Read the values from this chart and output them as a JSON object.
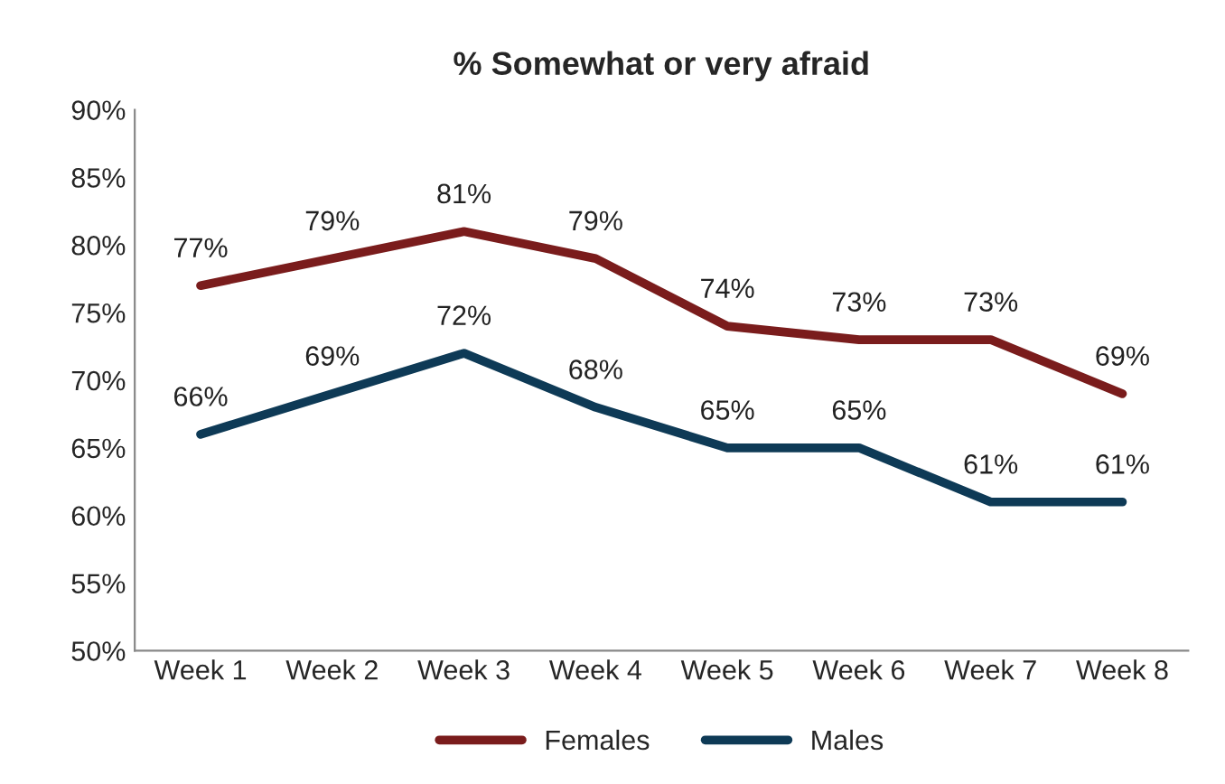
{
  "chart_data": {
    "type": "line",
    "title": "% Somewhat or very afraid",
    "categories": [
      "Week 1",
      "Week 2",
      "Week 3",
      "Week 4",
      "Week 5",
      "Week 6",
      "Week 7",
      "Week 8"
    ],
    "series": [
      {
        "name": "Females",
        "color": "#7a1c1c",
        "values": [
          77,
          79,
          81,
          79,
          74,
          73,
          73,
          69
        ],
        "value_labels": [
          "77%",
          "79%",
          "81%",
          "79%",
          "74%",
          "73%",
          "73%",
          "69%"
        ]
      },
      {
        "name": "Males",
        "color": "#0e3a56",
        "values": [
          66,
          69,
          72,
          68,
          65,
          65,
          61,
          61
        ],
        "value_labels": [
          "66%",
          "69%",
          "72%",
          "68%",
          "65%",
          "65%",
          "61%",
          "61%"
        ]
      }
    ],
    "ylim": [
      50,
      90
    ],
    "yticks": [
      {
        "value": 50,
        "label": "50%"
      },
      {
        "value": 55,
        "label": "55%"
      },
      {
        "value": 60,
        "label": "60%"
      },
      {
        "value": 65,
        "label": "65%"
      },
      {
        "value": 70,
        "label": "70%"
      },
      {
        "value": 75,
        "label": "75%"
      },
      {
        "value": 80,
        "label": "80%"
      },
      {
        "value": 85,
        "label": "85%"
      },
      {
        "value": 90,
        "label": "90%"
      }
    ],
    "grid": false,
    "legend": "bottom",
    "marker": "none",
    "line_style": "solid"
  }
}
